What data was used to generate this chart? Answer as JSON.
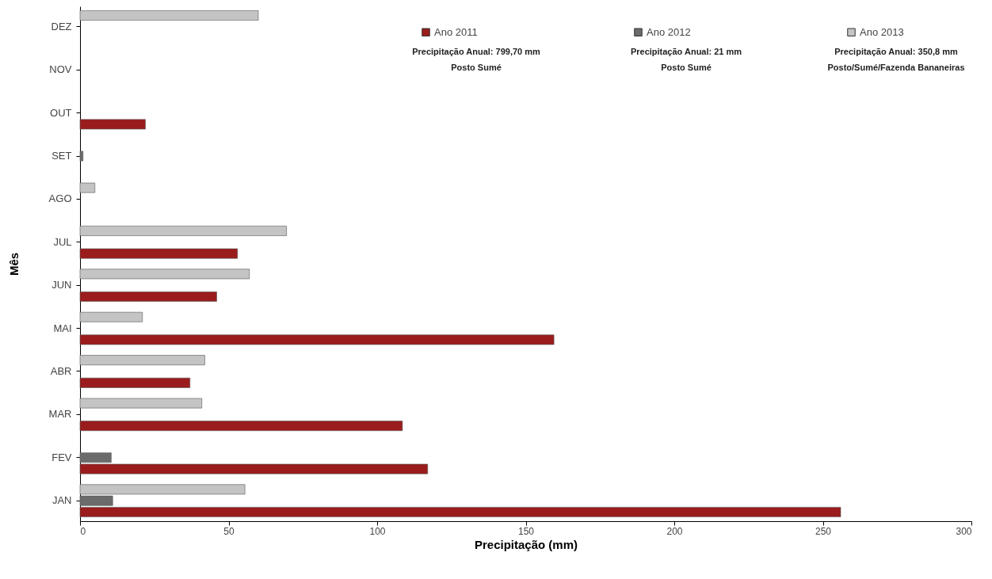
{
  "chart_data": {
    "type": "bar",
    "orientation": "horizontal",
    "xlabel": "Precipitação (mm)",
    "ylabel": "Mês",
    "categories": [
      "DEZ",
      "NOV",
      "OUT",
      "SET",
      "AGO",
      "JUL",
      "JUN",
      "MAI",
      "ABR",
      "MAR",
      "FEV",
      "JAN"
    ],
    "series": [
      {
        "name": "Ano 2011",
        "color": "#9b1c1c",
        "values": [
          null,
          null,
          22,
          null,
          null,
          53,
          46,
          159.5,
          37,
          108.5,
          117,
          256
        ]
      },
      {
        "name": "Ano 2012",
        "color": "#6b6b6b",
        "values": [
          null,
          null,
          null,
          1,
          null,
          null,
          null,
          null,
          null,
          null,
          10.5,
          11
        ]
      },
      {
        "name": "Ano 2013",
        "color": "#c4c4c4",
        "values": [
          60,
          null,
          null,
          null,
          5,
          69.5,
          57,
          21,
          42,
          41,
          null,
          55.5
        ]
      }
    ],
    "annotations": [
      "Precipitação Anual: 799,70 mm",
      "Posto Sumé",
      "Precipitação Anual: 21 mm",
      "Posto Sumé",
      "Precipitação Anual: 350,8 mm",
      "Posto/Sumé/Fazenda Bananeiras"
    ],
    "xlim": [
      0,
      300
    ],
    "xticks": [
      0,
      50,
      100,
      150,
      200,
      250,
      300
    ],
    "grid": false,
    "legend": "top right"
  }
}
